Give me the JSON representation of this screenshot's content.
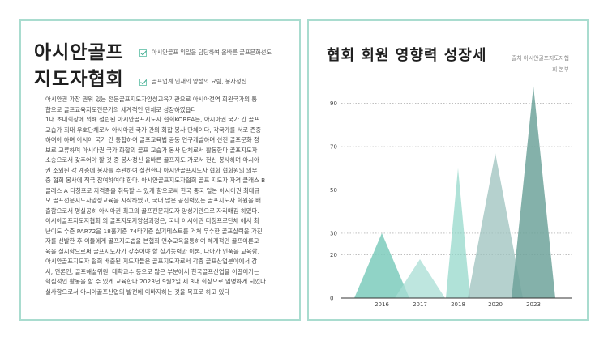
{
  "left": {
    "title_line1": "아시안골프",
    "title_line2": "지도자협회",
    "checks": [
      "아시안골프 익일을 담당하여 올바른 골프문화선도",
      "골프업계 인재의 양성의 요람, 봉사정신"
    ],
    "paragraph_lines": [
      "아시안권 가장 권위 있는 전문골프지도자양성교육기관으로 아시아전역 회원국가의 통",
      "합으로 골프교육지도전문가의 세계적인 단체로 성장하였읍다",
      "1대 초대회장에 의해 설립된 아시안골프지도자 협회KOREA는, 아시아권 국가 간 골프",
      "교습가 최대 우호단체로서 아시아권 국가 간의 화합 봉사 단체이다, 각국가를 서로 존중",
      "하여아 하며 아시아 국가 간 통합하여 골프교육법 공동 연구개발하며 선진 골프문화 정",
      "보로 교류하며 아시아권 국가 화합의 골프 교습가 봉사 단체로서 활동한다 골프지도자",
      "소승으로서 갖추어야 할 것 중 봉사정신 올바른 골프지도 가로서 헌신 봉사하며 아시아",
      "권 소외된 각 계층에 봉사를 주관하여 실천한다 아시안골프지도자 협회 협회원의 의무",
      "중 협회 봉사에 적극 참여하여야 한다. 아시안골프지도자협회 골프 지도자 자격 클래스 B",
      "클래스 A 티칭프로 자격증을 취득할 수 있게 함으로써 한국 중국 일본 아시아권 최대규",
      "모 골프전문지도자양성교육을 시작하였고, 국내 많은 공신력있는 골프지도자 회원을 배",
      "출함으로서 명실공히 아시아권 최고의 골프전문지도자 양성기관으로 자리매김 하였다.",
      "아시아골프지도자협회 의 골프지도자양성과정은, 국내 아시아권 티칭프로단체 에서 최",
      "난이도 수준 PAR72을 18홀기준 74타기준 실기테스트를 거쳐 우수한 골프실력을 가진",
      "자를 선발한 후 이들에게 골프지도법을 본협회 연수교육을통하여 체계적인 골프이론교",
      "육을 실시함으로써 골프지도자가 갖추어야 할 실기능력과 이론, 나아가 인품을 교육함,",
      "아시안골프지도자 협회 배출된 지도자들은 골프지도자로서 각종 골프산업분야에서 강",
      "사, 언론인, 골프해설위원, 대학교수 등으로 많은 부분에서 한국골프산업을 이끌어가는",
      "핵심적인 활동을 할 수 있게 교육한다.2023년 9월2일 제 3대 회장으로 임명하게 되었다",
      "실사함으로서 아시아골프산업의 발전에 이바지하는 것을 목표로 하고 있다"
    ]
  },
  "right": {
    "title": "협회 회원 영향력 성장세",
    "source_line1": "출처 아시안골프지도자협",
    "source_line2": "회 본부"
  },
  "chart_data": {
    "type": "area",
    "shape": "triangular peaks",
    "y_ticks": [
      0,
      20,
      30,
      50,
      70,
      90
    ],
    "ylim": [
      0,
      100
    ],
    "x_ticks": [
      "2016",
      "2017",
      "2018",
      "2020",
      "2023"
    ],
    "grid": "horizontal dotted",
    "series": [
      {
        "category": "2016",
        "value": 30,
        "color": "#7ccbbc",
        "opacity": 0.85
      },
      {
        "category": "2017",
        "value": 18,
        "color": "#a8ddd4",
        "opacity": 0.75
      },
      {
        "category": "2018",
        "value": 60,
        "color": "#8fd5c8",
        "opacity": 0.7
      },
      {
        "category": "2020",
        "value": 67,
        "color": "#9cc2bd",
        "opacity": 0.75
      },
      {
        "category": "2023",
        "value": 98,
        "color": "#6fa39b",
        "opacity": 0.85
      }
    ]
  }
}
